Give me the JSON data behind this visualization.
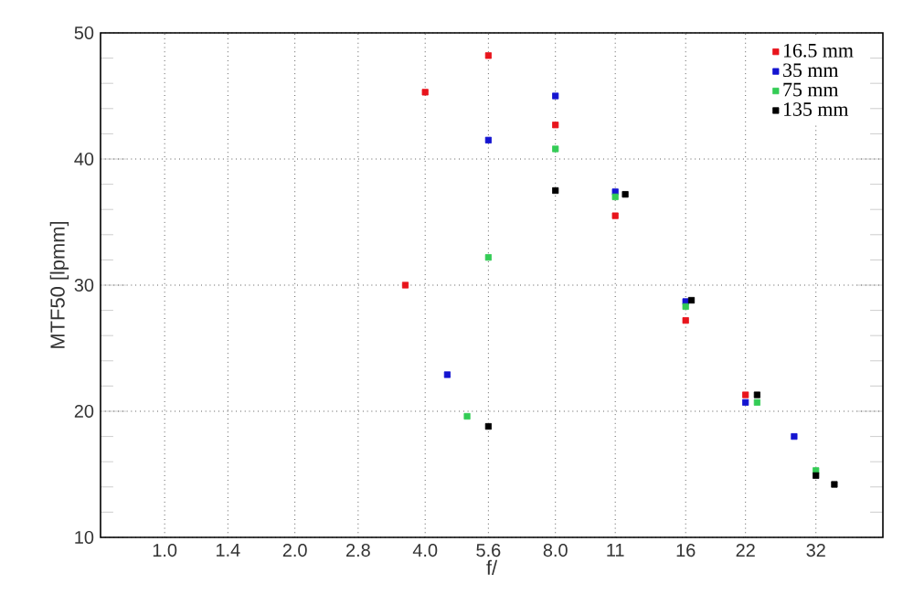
{
  "chart_data": {
    "type": "scatter",
    "xlabel": "f/",
    "ylabel": "MTF50 [lpmm]",
    "log": "x",
    "grid": true,
    "legend": "top right",
    "marker": "square",
    "xlim": [
      0.711,
      45.7
    ],
    "ylim": [
      10,
      50
    ],
    "xticks": [
      {
        "value": 1,
        "label": "1.0"
      },
      1.4,
      {
        "value": 2,
        "label": "2.0"
      },
      2.8,
      {
        "value": 4,
        "label": "4.0"
      },
      5.6,
      {
        "value": 8,
        "label": "8.0"
      },
      11,
      16,
      22,
      32
    ],
    "yticks": [
      10,
      20,
      30,
      40,
      50
    ],
    "series": [
      {
        "name": "16.5 mm",
        "color": "#e8141c",
        "x": [
          3.6,
          4,
          5.6,
          8,
          11,
          16,
          22
        ],
        "values": [
          30,
          45.3,
          48.2,
          42.7,
          35.5,
          27.2,
          21.3
        ]
      },
      {
        "name": "35 mm",
        "color": "#1414d0",
        "x": [
          4.5,
          5.6,
          8,
          11,
          16,
          22,
          28.5
        ],
        "values": [
          22.9,
          41.5,
          45,
          37.4,
          28.7,
          20.7,
          18
        ]
      },
      {
        "name": "75 mm",
        "color": "#33cc55",
        "x": [
          5,
          5.6,
          8,
          11,
          16,
          23.4,
          32
        ],
        "values": [
          19.6,
          32.2,
          40.8,
          37,
          28.3,
          20.7,
          15.3
        ]
      },
      {
        "name": "135 mm",
        "color": "#000000",
        "x": [
          5.6,
          8,
          11.6,
          16.5,
          23.4,
          32,
          35.3
        ],
        "values": [
          18.8,
          37.5,
          37.2,
          28.8,
          21.3,
          14.9,
          14.2
        ]
      }
    ]
  }
}
